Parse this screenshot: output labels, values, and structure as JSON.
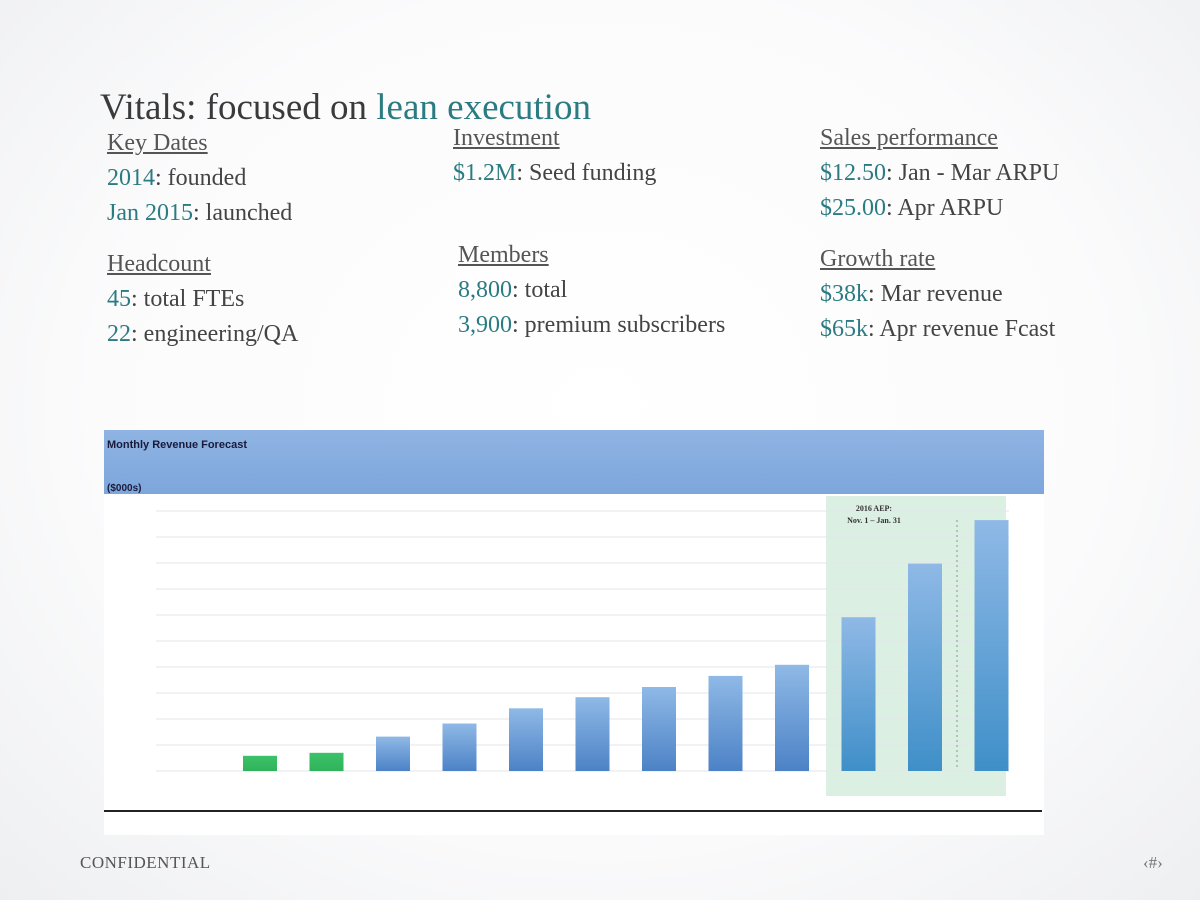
{
  "slide": {
    "title_plain": "Vitals: focused on ",
    "title_accent": "lean execution",
    "footer": "CONFIDENTIAL",
    "page_number": "‹#›"
  },
  "stats": {
    "key_dates": {
      "heading": "Key Dates",
      "items": [
        {
          "value": "2014",
          "label": ": founded"
        },
        {
          "value": "Jan 2015",
          "label": ": launched"
        }
      ]
    },
    "investment": {
      "heading": "Investment",
      "items": [
        {
          "value": "$1.2M",
          "label": ": Seed funding"
        }
      ]
    },
    "sales_performance": {
      "heading": "Sales performance",
      "items": [
        {
          "value": "$12.50",
          "label": ": Jan - Mar ARPU"
        },
        {
          "value": "$25.00",
          "label": ": Apr ARPU"
        }
      ]
    },
    "headcount": {
      "heading": "Headcount",
      "items": [
        {
          "value": "45",
          "label": ": total FTEs"
        },
        {
          "value": "22",
          "label": ": engineering/QA"
        }
      ]
    },
    "members": {
      "heading": "Members",
      "items": [
        {
          "value": "8,800",
          "label": ": total"
        },
        {
          "value": "3,900",
          "label": ": premium subscribers"
        }
      ]
    },
    "growth_rate": {
      "heading": "Growth rate",
      "items": [
        {
          "value": "$38k",
          "label": ": Mar revenue"
        },
        {
          "value": "$65k",
          "label": ": Apr revenue Fcast"
        }
      ]
    }
  },
  "chart_data": {
    "type": "bar",
    "title": "Monthly Revenue Forecast",
    "subtitle": "($000s)",
    "values": [
      15,
      18,
      34,
      47,
      62,
      73,
      83,
      94,
      105,
      152,
      205,
      248
    ],
    "colors": [
      "#2fb25a",
      "#2fb25a",
      "#4c82c6",
      "#4c82c6",
      "#4c82c6",
      "#4c82c6",
      "#4c82c6",
      "#4c82c6",
      "#4c82c6",
      "#3f8fc8",
      "#3f8fc8",
      "#3f8fc8"
    ],
    "ylim": [
      0,
      260
    ],
    "grid": true,
    "annotation": {
      "line1": "2016 AEP:",
      "line2": "Nov. 1 – Jan. 31"
    },
    "highlight_range": [
      9,
      11
    ]
  }
}
